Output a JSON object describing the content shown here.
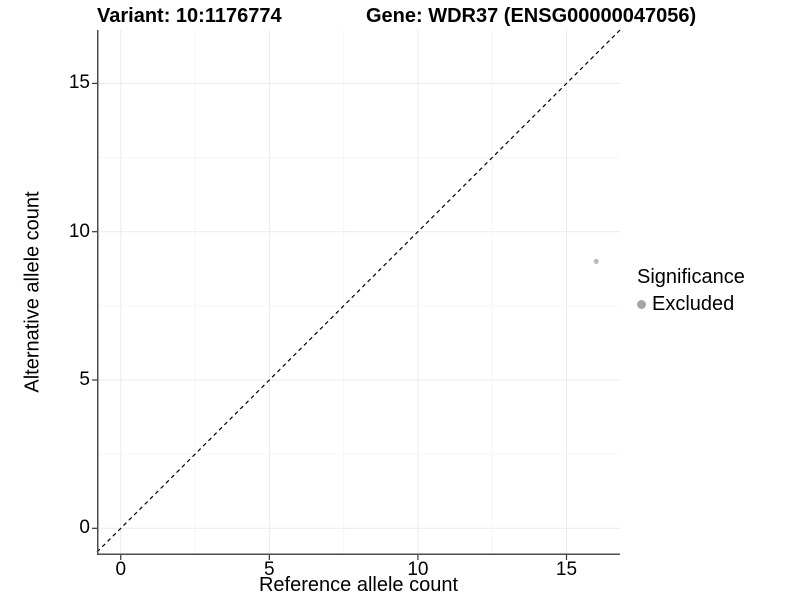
{
  "titles": {
    "variant": "Variant: 10:1176774",
    "gene": "Gene: WDR37 (ENSG00000047056)"
  },
  "axes": {
    "x_label": "Reference allele count",
    "y_label": "Alternative allele count",
    "x_tick_labels": [
      "0",
      "5",
      "10",
      "15"
    ],
    "y_tick_labels": [
      "0",
      "5",
      "10",
      "15"
    ]
  },
  "legend": {
    "title": "Significance",
    "items": [
      {
        "label": "Excluded",
        "color": "#a6a6a6"
      }
    ]
  },
  "colors": {
    "background": "#ffffff",
    "grid_major": "#ebebeb",
    "grid_minor": "#f6f6f6",
    "axis_line": "#4d4d4d",
    "tick_mark": "#333333",
    "text": "#000000",
    "point": "#bdbdbd",
    "reference_line": "#000000"
  },
  "chart_data": {
    "type": "scatter",
    "title": "Variant: 10:1176774 | Gene: WDR37 (ENSG00000047056)",
    "xlabel": "Reference allele count",
    "ylabel": "Alternative allele count",
    "xlim": [
      -0.8,
      16.8
    ],
    "ylim": [
      -0.9,
      16.8
    ],
    "x_ticks": [
      0,
      5,
      10,
      15
    ],
    "y_ticks": [
      0,
      5,
      10,
      15
    ],
    "grid": "major gridlines at ticks plus minor gridlines at midpoints, light gray on white",
    "legend_position": "right-middle",
    "series": [
      {
        "name": "Excluded",
        "color": "#bdbdbd",
        "points": [
          {
            "x": 16,
            "y": 9
          }
        ]
      }
    ],
    "reference_line": {
      "style": "dashed",
      "slope": 1,
      "intercept": 0,
      "color": "#000000"
    }
  }
}
